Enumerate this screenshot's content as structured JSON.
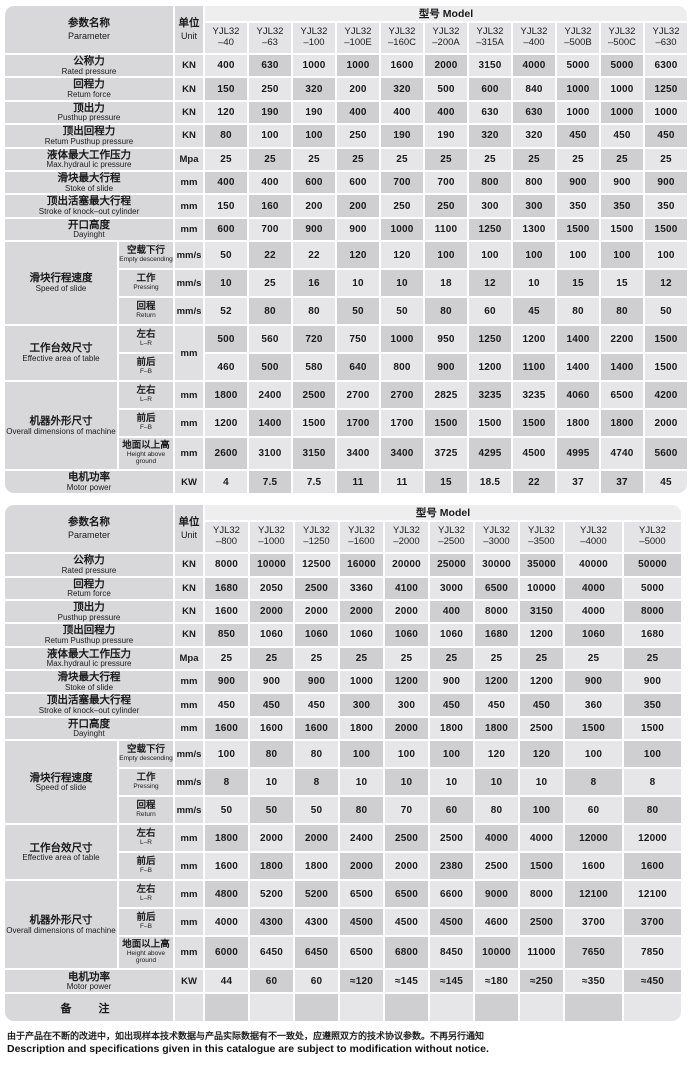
{
  "header": {
    "parameter_cn": "参数名称",
    "parameter_en": "Parameter",
    "unit_cn": "单位",
    "unit_en": "Unit",
    "model_cn": "型号",
    "model_en": "Model"
  },
  "model_prefix": "YJL32",
  "tables": [
    {
      "models": [
        "–40",
        "–63",
        "–100",
        "–100E",
        "–160C",
        "–200A",
        "–315A",
        "–400",
        "–500B",
        "–500C",
        "–630"
      ],
      "rows": [
        {
          "type": "simple",
          "label_cn": "公称力",
          "label_en": "Rated pressure",
          "unit": "KN",
          "values": [
            "400",
            "630",
            "1000",
            "1000",
            "1600",
            "2000",
            "3150",
            "4000",
            "5000",
            "5000",
            "6300"
          ]
        },
        {
          "type": "simple",
          "label_cn": "回程力",
          "label_en": "Retum force",
          "unit": "KN",
          "values": [
            "150",
            "250",
            "320",
            "200",
            "320",
            "500",
            "600",
            "840",
            "1000",
            "1000",
            "1250"
          ]
        },
        {
          "type": "simple",
          "label_cn": "顶出力",
          "label_en": "Pusthup pressure",
          "unit": "KN",
          "values": [
            "120",
            "190",
            "190",
            "400",
            "400",
            "400",
            "630",
            "630",
            "1000",
            "1000",
            "1000"
          ]
        },
        {
          "type": "simple",
          "label_cn": "顶出回程力",
          "label_en": "Retum Pusthup pressure",
          "unit": "KN",
          "values": [
            "80",
            "100",
            "100",
            "250",
            "190",
            "190",
            "320",
            "320",
            "450",
            "450",
            "450"
          ]
        },
        {
          "type": "simple",
          "label_cn": "液体最大工作压力",
          "label_en": "Max.hydraul ic pressure",
          "unit": "Mpa",
          "values": [
            "25",
            "25",
            "25",
            "25",
            "25",
            "25",
            "25",
            "25",
            "25",
            "25",
            "25"
          ]
        },
        {
          "type": "simple",
          "label_cn": "滑块最大行程",
          "label_en": "Stoke of slide",
          "unit": "mm",
          "values": [
            "400",
            "400",
            "600",
            "600",
            "700",
            "700",
            "800",
            "800",
            "900",
            "900",
            "900"
          ]
        },
        {
          "type": "simple",
          "label_cn": "顶出活塞最大行程",
          "label_en": "Stroke of knock–out cylinder",
          "unit": "mm",
          "values": [
            "150",
            "160",
            "200",
            "200",
            "250",
            "250",
            "300",
            "300",
            "350",
            "350",
            "350"
          ]
        },
        {
          "type": "simple",
          "label_cn": "开口高度",
          "label_en": "Dayinght",
          "unit": "mm",
          "values": [
            "600",
            "700",
            "900",
            "900",
            "1000",
            "1100",
            "1250",
            "1300",
            "1500",
            "1500",
            "1500"
          ]
        },
        {
          "type": "group",
          "label_cn": "滑块行程速度",
          "label_en": "Speed of slide",
          "subrows": [
            {
              "sub_cn": "空载下行",
              "sub_en": "Empty descending",
              "unit": "mm/s",
              "values": [
                "50",
                "22",
                "22",
                "120",
                "120",
                "100",
                "100",
                "100",
                "100",
                "100",
                "100"
              ]
            },
            {
              "sub_cn": "工作",
              "sub_en": "Pressing",
              "unit": "mm/s",
              "values": [
                "10",
                "25",
                "16",
                "10",
                "10",
                "18",
                "12",
                "10",
                "15",
                "15",
                "12"
              ]
            },
            {
              "sub_cn": "回程",
              "sub_en": "Return",
              "unit": "mm/s",
              "values": [
                "52",
                "80",
                "80",
                "50",
                "50",
                "80",
                "60",
                "45",
                "80",
                "80",
                "50"
              ]
            }
          ]
        },
        {
          "type": "group",
          "label_cn": "工作台效尺寸",
          "label_en": "Effective area of table",
          "unit_merged": "mm",
          "subrows": [
            {
              "sub_cn": "左右",
              "sub_en": "L–R",
              "unit": "",
              "values": [
                "500",
                "560",
                "720",
                "750",
                "1000",
                "950",
                "1250",
                "1200",
                "1400",
                "2200",
                "1500"
              ]
            },
            {
              "sub_cn": "前后",
              "sub_en": "F–B",
              "unit": "",
              "values": [
                "460",
                "500",
                "580",
                "640",
                "800",
                "900",
                "1200",
                "1100",
                "1400",
                "1400",
                "1500"
              ]
            }
          ]
        },
        {
          "type": "group",
          "label_cn": "机器外形尺寸",
          "label_en": "Overall dimensions of machine",
          "subrows": [
            {
              "sub_cn": "左右",
              "sub_en": "L–R",
              "unit": "mm",
              "values": [
                "1800",
                "2400",
                "2500",
                "2700",
                "2700",
                "2825",
                "3235",
                "3235",
                "4060",
                "6500",
                "4200"
              ]
            },
            {
              "sub_cn": "前后",
              "sub_en": "F–B",
              "unit": "mm",
              "values": [
                "1200",
                "1400",
                "1500",
                "1700",
                "1700",
                "1500",
                "1500",
                "1500",
                "1800",
                "1800",
                "2000"
              ]
            },
            {
              "sub_cn": "地面以上高",
              "sub_en": "Height above ground",
              "unit": "mm",
              "values": [
                "2600",
                "3100",
                "3150",
                "3400",
                "3400",
                "3725",
                "4295",
                "4500",
                "4995",
                "4740",
                "5600"
              ]
            }
          ]
        },
        {
          "type": "motor",
          "label_cn": "电机功率",
          "label_en": "Motor power",
          "unit": "KW",
          "values": [
            "4",
            "7.5",
            "7.5",
            "11",
            "11",
            "15",
            "18.5",
            "22",
            "37",
            "37",
            "45"
          ]
        }
      ]
    },
    {
      "models": [
        "–800",
        "–1000",
        "–1250",
        "–1600",
        "–2000",
        "–2500",
        "–3000",
        "–3500",
        "–4000",
        "–5000"
      ],
      "rows": [
        {
          "type": "simple",
          "label_cn": "公称力",
          "label_en": "Rated pressure",
          "unit": "KN",
          "values": [
            "8000",
            "10000",
            "12500",
            "16000",
            "20000",
            "25000",
            "30000",
            "35000",
            "40000",
            "50000"
          ]
        },
        {
          "type": "simple",
          "label_cn": "回程力",
          "label_en": "Retum force",
          "unit": "KN",
          "values": [
            "1680",
            "2050",
            "2500",
            "3360",
            "4100",
            "3000",
            "6500",
            "10000",
            "4000",
            "5000"
          ]
        },
        {
          "type": "simple",
          "label_cn": "顶出力",
          "label_en": "Pusthup pressure",
          "unit": "KN",
          "values": [
            "1600",
            "2000",
            "2000",
            "2000",
            "2000",
            "400",
            "8000",
            "3150",
            "4000",
            "8000"
          ]
        },
        {
          "type": "simple",
          "label_cn": "顶出回程力",
          "label_en": "Retum Pusthup pressure",
          "unit": "KN",
          "values": [
            "850",
            "1060",
            "1060",
            "1060",
            "1060",
            "1060",
            "1680",
            "1200",
            "1060",
            "1680"
          ]
        },
        {
          "type": "simple",
          "label_cn": "液体最大工作压力",
          "label_en": "Max.hydraul ic pressure",
          "unit": "Mpa",
          "values": [
            "25",
            "25",
            "25",
            "25",
            "25",
            "25",
            "25",
            "25",
            "25",
            "25"
          ]
        },
        {
          "type": "simple",
          "label_cn": "滑块最大行程",
          "label_en": "Stoke of slide",
          "unit": "mm",
          "values": [
            "900",
            "900",
            "900",
            "1000",
            "1200",
            "900",
            "1200",
            "1200",
            "900",
            "900"
          ]
        },
        {
          "type": "simple",
          "label_cn": "顶出活塞最大行程",
          "label_en": "Stroke of knock–out cylinder",
          "unit": "mm",
          "values": [
            "450",
            "450",
            "450",
            "300",
            "300",
            "450",
            "450",
            "450",
            "360",
            "350"
          ]
        },
        {
          "type": "simple",
          "label_cn": "开口高度",
          "label_en": "Dayinght",
          "unit": "mm",
          "values": [
            "1600",
            "1600",
            "1600",
            "1800",
            "2000",
            "1800",
            "1800",
            "2500",
            "1500",
            "1500"
          ]
        },
        {
          "type": "group",
          "label_cn": "滑块行程速度",
          "label_en": "Speed of slide",
          "subrows": [
            {
              "sub_cn": "空载下行",
              "sub_en": "Empty descending",
              "unit": "mm/s",
              "values": [
                "100",
                "80",
                "80",
                "100",
                "100",
                "100",
                "120",
                "120",
                "100",
                "100"
              ]
            },
            {
              "sub_cn": "工作",
              "sub_en": "Pressing",
              "unit": "mm/s",
              "values": [
                "8",
                "10",
                "8",
                "10",
                "10",
                "10",
                "10",
                "10",
                "8",
                "8"
              ]
            },
            {
              "sub_cn": "回程",
              "sub_en": "Return",
              "unit": "mm/s",
              "values": [
                "50",
                "50",
                "50",
                "80",
                "70",
                "60",
                "80",
                "100",
                "60",
                "80"
              ]
            }
          ]
        },
        {
          "type": "group",
          "label_cn": "工作台效尺寸",
          "label_en": "Effective area of table",
          "subrows": [
            {
              "sub_cn": "左右",
              "sub_en": "L–R",
              "unit": "mm",
              "values": [
                "1800",
                "2000",
                "2000",
                "2400",
                "2500",
                "2500",
                "4000",
                "4000",
                "12000",
                "12000"
              ]
            },
            {
              "sub_cn": "前后",
              "sub_en": "F–B",
              "unit": "mm",
              "values": [
                "1600",
                "1800",
                "1800",
                "2000",
                "2000",
                "2380",
                "2500",
                "1500",
                "1600",
                "1600"
              ]
            }
          ]
        },
        {
          "type": "group",
          "label_cn": "机器外形尺寸",
          "label_en": "Overall dimensions of machine",
          "subrows": [
            {
              "sub_cn": "左右",
              "sub_en": "L–R",
              "unit": "mm",
              "values": [
                "4800",
                "5200",
                "5200",
                "6500",
                "6500",
                "6600",
                "9000",
                "8000",
                "12100",
                "12100"
              ]
            },
            {
              "sub_cn": "前后",
              "sub_en": "F–B",
              "unit": "mm",
              "values": [
                "4000",
                "4300",
                "4300",
                "4500",
                "4500",
                "4500",
                "4600",
                "2500",
                "3700",
                "3700"
              ]
            },
            {
              "sub_cn": "地面以上高",
              "sub_en": "Height above ground",
              "unit": "mm",
              "values": [
                "6000",
                "6450",
                "6450",
                "6500",
                "6800",
                "8450",
                "10000",
                "11000",
                "7650",
                "7850"
              ]
            }
          ]
        },
        {
          "type": "motor",
          "label_cn": "电机功率",
          "label_en": "Motor power",
          "unit": "KW",
          "values": [
            "44",
            "60",
            "60",
            "≈120",
            "≈145",
            "≈145",
            "≈180",
            "≈250",
            "≈350",
            "≈450"
          ]
        },
        {
          "type": "remark",
          "label_cn": "备　注",
          "unit": "",
          "values": [
            "",
            "",
            "",
            "",
            "",
            "",
            "",
            "",
            "",
            ""
          ]
        }
      ]
    }
  ],
  "footnote": {
    "cn": "由于产品在不断的改进中，如出现样本技术数据与产品实际数据有不一致处，应遵照双方的技术协议参数。不再另行通知",
    "en": "Description and specifications given in this catalogue are subject to modification without notice."
  }
}
